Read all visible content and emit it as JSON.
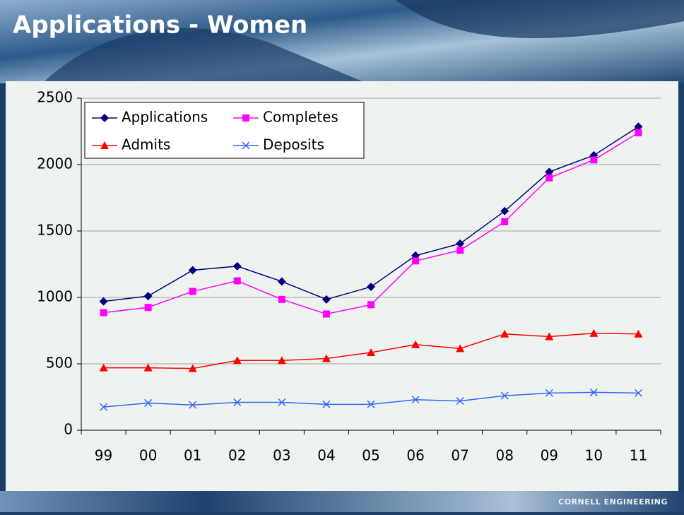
{
  "chart_data": {
    "type": "line",
    "title": "Applications - Women",
    "categories": [
      "99",
      "00",
      "01",
      "02",
      "03",
      "04",
      "05",
      "06",
      "07",
      "08",
      "09",
      "10",
      "11"
    ],
    "series": [
      {
        "name": "Applications",
        "color": "#000080",
        "marker": "diamond",
        "values": [
          970,
          1010,
          1205,
          1235,
          1120,
          985,
          1080,
          1315,
          1405,
          1650,
          1945,
          2070,
          2285
        ]
      },
      {
        "name": "Completes",
        "color": "#ff00ff",
        "marker": "square",
        "values": [
          885,
          925,
          1045,
          1125,
          985,
          875,
          945,
          1275,
          1355,
          1570,
          1900,
          2035,
          2240
        ]
      },
      {
        "name": "Admits",
        "color": "#ff0000",
        "marker": "triangle",
        "values": [
          470,
          470,
          465,
          525,
          525,
          540,
          585,
          645,
          615,
          725,
          705,
          730,
          725
        ]
      },
      {
        "name": "Deposits",
        "color": "#3366ff",
        "marker": "x",
        "values": [
          175,
          205,
          190,
          210,
          210,
          195,
          195,
          230,
          220,
          260,
          280,
          285,
          280
        ]
      }
    ],
    "ylim": [
      0,
      2500
    ],
    "yticks": [
      0,
      500,
      1000,
      1500,
      2000,
      2500
    ],
    "grid": true,
    "legend": "top-left"
  },
  "footer": "CORNELL ENGINEERING"
}
